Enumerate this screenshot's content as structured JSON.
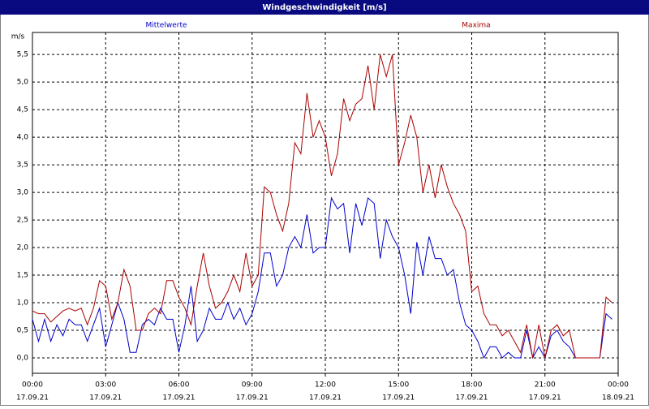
{
  "chart_data": {
    "type": "line",
    "title": "Windgeschwindigkeit [m/s]",
    "y_unit": "m/s",
    "x": [
      0,
      0.25,
      0.5,
      0.75,
      1,
      1.25,
      1.5,
      1.75,
      2,
      2.25,
      2.5,
      2.75,
      3,
      3.25,
      3.5,
      3.75,
      4,
      4.25,
      4.5,
      4.75,
      5,
      5.25,
      5.5,
      5.75,
      6,
      6.25,
      6.5,
      6.75,
      7,
      7.25,
      7.5,
      7.75,
      8,
      8.25,
      8.5,
      8.75,
      9,
      9.25,
      9.5,
      9.75,
      10,
      10.25,
      10.5,
      10.75,
      11,
      11.25,
      11.5,
      11.75,
      12,
      12.25,
      12.5,
      12.75,
      13,
      13.25,
      13.5,
      13.75,
      14,
      14.25,
      14.5,
      14.75,
      15,
      15.25,
      15.5,
      15.75,
      16,
      16.25,
      16.5,
      16.75,
      17,
      17.25,
      17.5,
      17.75,
      18,
      18.25,
      18.5,
      18.75,
      19,
      19.25,
      19.5,
      19.75,
      20,
      20.25,
      20.5,
      20.75,
      21,
      21.25,
      21.5,
      21.75,
      22,
      22.25,
      22.5,
      22.75,
      23,
      23.25,
      23.5,
      23.75
    ],
    "series": [
      {
        "name": "Mittelwerte",
        "color": "#0000cc",
        "values": [
          0.7,
          0.3,
          0.7,
          0.3,
          0.6,
          0.4,
          0.7,
          0.6,
          0.6,
          0.3,
          0.6,
          0.9,
          0.2,
          0.6,
          1.0,
          0.7,
          0.1,
          0.1,
          0.6,
          0.7,
          0.6,
          0.9,
          0.7,
          0.7,
          0.1,
          0.6,
          1.3,
          0.3,
          0.5,
          0.9,
          0.7,
          0.7,
          1.0,
          0.7,
          0.9,
          0.6,
          0.8,
          1.2,
          1.9,
          1.9,
          1.3,
          1.5,
          2.0,
          2.2,
          2.0,
          2.6,
          1.9,
          2.0,
          2.0,
          2.9,
          2.7,
          2.8,
          1.9,
          2.8,
          2.4,
          2.9,
          2.8,
          1.8,
          2.5,
          2.2,
          2.0,
          1.5,
          0.8,
          2.1,
          1.5,
          2.2,
          1.8,
          1.8,
          1.5,
          1.6,
          1.0,
          0.6,
          0.5,
          0.3,
          0.0,
          0.2,
          0.2,
          0.0,
          0.1,
          0.0,
          0.0,
          0.5,
          0.0,
          0.2,
          0.0,
          0.4,
          0.5,
          0.3,
          0.2,
          0.0,
          0.0,
          0.0,
          0.0,
          0.0,
          0.8,
          0.7
        ]
      },
      {
        "name": "Maxima",
        "color": "#aa0000",
        "values": [
          0.85,
          0.8,
          0.8,
          0.65,
          0.75,
          0.85,
          0.9,
          0.85,
          0.9,
          0.6,
          0.9,
          1.4,
          1.3,
          0.7,
          1.0,
          1.6,
          1.3,
          0.5,
          0.5,
          0.8,
          0.9,
          0.8,
          1.4,
          1.4,
          1.1,
          0.9,
          0.6,
          1.3,
          1.9,
          1.3,
          0.9,
          1.0,
          1.2,
          1.5,
          1.2,
          1.9,
          1.3,
          1.5,
          3.1,
          3.0,
          2.6,
          2.3,
          2.8,
          3.9,
          3.7,
          4.8,
          4.0,
          4.3,
          4.0,
          3.3,
          3.7,
          4.7,
          4.3,
          4.6,
          4.7,
          5.3,
          4.5,
          5.5,
          5.1,
          5.5,
          3.5,
          3.9,
          4.4,
          4.0,
          3.0,
          3.5,
          2.9,
          3.5,
          3.1,
          2.8,
          2.6,
          2.3,
          1.2,
          1.3,
          0.8,
          0.6,
          0.6,
          0.4,
          0.5,
          0.3,
          0.1,
          0.6,
          0.0,
          0.6,
          0.0,
          0.5,
          0.6,
          0.4,
          0.5,
          0.0,
          0.0,
          0.0,
          0.0,
          0.0,
          1.1,
          1.0
        ]
      }
    ],
    "xlim": [
      0,
      24
    ],
    "xticks": [
      {
        "value": 0,
        "label": "00:00"
      },
      {
        "value": 3,
        "label": "03:00"
      },
      {
        "value": 6,
        "label": "06:00"
      },
      {
        "value": 9,
        "label": "09:00"
      },
      {
        "value": 12,
        "label": "12:00"
      },
      {
        "value": 15,
        "label": "15:00"
      },
      {
        "value": 18,
        "label": "18:00"
      },
      {
        "value": 21,
        "label": "21:00"
      },
      {
        "value": 24,
        "label": "00:00"
      }
    ],
    "xtick_dates": [
      "17.09.21",
      "17.09.21",
      "17.09.21",
      "17.09.21",
      "17.09.21",
      "17.09.21",
      "17.09.21",
      "17.09.21",
      "18.09.21"
    ],
    "ylim": [
      -0.28,
      5.9
    ],
    "yticks": [
      {
        "value": 0,
        "label": "0,0"
      },
      {
        "value": 0.5,
        "label": "0,5"
      },
      {
        "value": 1,
        "label": "1,0"
      },
      {
        "value": 1.5,
        "label": "1,5"
      },
      {
        "value": 2,
        "label": "2,0"
      },
      {
        "value": 2.5,
        "label": "2,5"
      },
      {
        "value": 3,
        "label": "3,0"
      },
      {
        "value": 3.5,
        "label": "3,5"
      },
      {
        "value": 4,
        "label": "4,0"
      },
      {
        "value": 4.5,
        "label": "4,5"
      },
      {
        "value": 5,
        "label": "5,0"
      },
      {
        "value": 5.5,
        "label": "5,5"
      }
    ],
    "grid": true
  }
}
